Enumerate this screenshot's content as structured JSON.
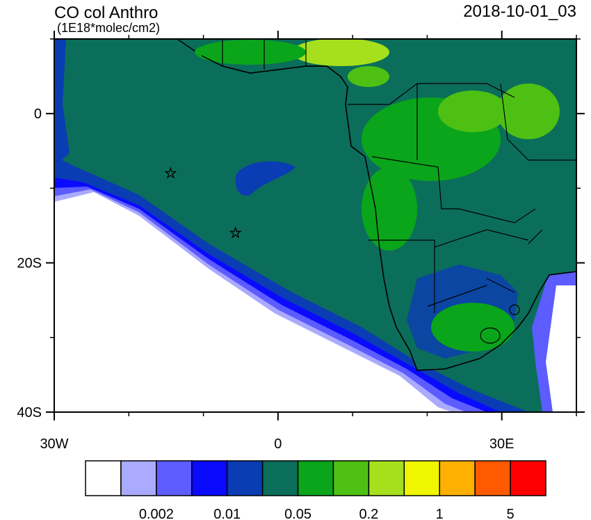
{
  "chart_data": {
    "type": "map",
    "title": "CO col Anthro",
    "subtitle": "(1E18*molec/cm2)",
    "timestamp": "2018-10-01_03",
    "xlim": [
      -30,
      40
    ],
    "ylim": [
      -40,
      10
    ],
    "xticks": [
      {
        "value": -30,
        "label": "30W"
      },
      0,
      {
        "value": 30,
        "label": "30E"
      }
    ],
    "yticks": [
      0,
      {
        "value": -20,
        "label": "20S"
      },
      {
        "value": -40,
        "label": "40S"
      }
    ],
    "xminorticks": [
      -20,
      -10,
      10,
      20,
      40
    ],
    "yminorticks": [
      10,
      -10,
      -30
    ],
    "markers": {
      "lon": [
        -14.4,
        -5.7
      ],
      "lat": [
        -8.0,
        -16.0
      ]
    },
    "colorbar": {
      "colors": [
        "#ffffff",
        "#aaaaff",
        "#5c5cff",
        "#0a0aff",
        "#0a3cb4",
        "#0b6e5a",
        "#0aa51a",
        "#4ec014",
        "#a6e01c",
        "#f0f500",
        "#ffb000",
        "#ff5a00",
        "#ff0000"
      ],
      "levels": [
        null,
        0.002,
        null,
        0.01,
        null,
        0.05,
        null,
        0.2,
        null,
        1,
        null,
        5
      ]
    }
  }
}
